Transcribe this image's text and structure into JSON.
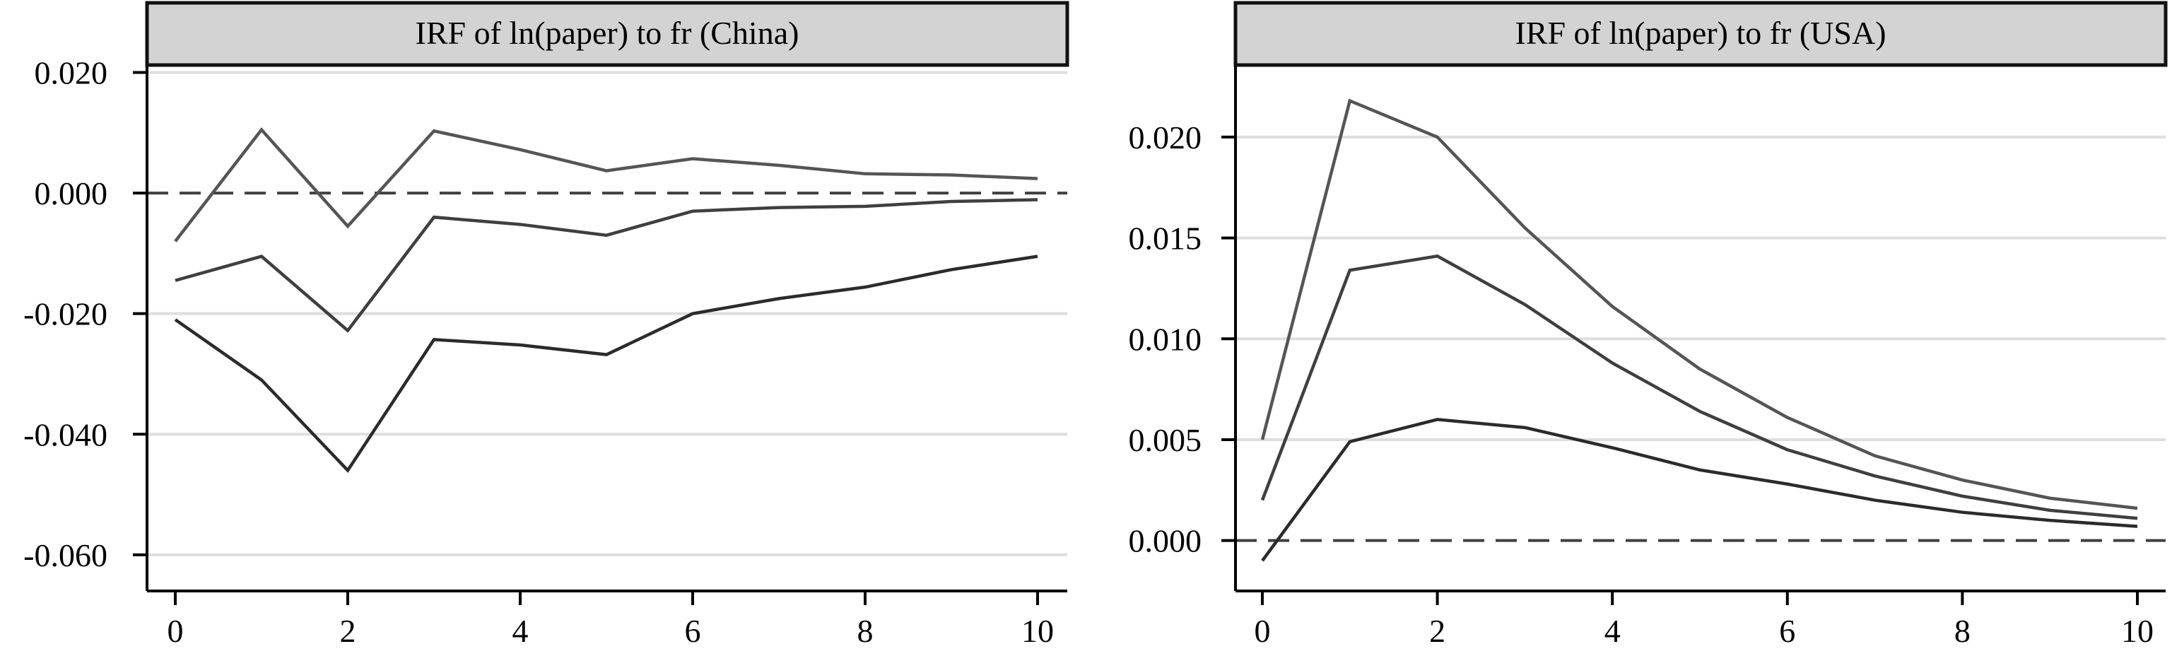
{
  "chart_data": [
    {
      "type": "line",
      "title": "IRF of ln(paper) to fr (China)",
      "xlabel": "",
      "ylabel": "",
      "xlim": [
        0,
        10
      ],
      "ylim": [
        -0.066,
        0.021
      ],
      "xticks": [
        "0",
        "2",
        "4",
        "6",
        "8",
        "10"
      ],
      "yticks": [
        "0.020",
        "0.000",
        "-0.020",
        "-0.040",
        "-0.060"
      ],
      "reference_line": 0,
      "grid": true,
      "colors": [
        "#555555",
        "#3f3f3f",
        "#2b2b2b"
      ],
      "x": [
        0,
        1,
        2,
        3,
        4,
        5,
        6,
        7,
        8,
        9,
        10
      ],
      "series": [
        {
          "values": [
            -0.008,
            0.0105,
            -0.0055,
            0.0103,
            0.0072,
            0.0037,
            0.0057,
            0.0046,
            0.0032,
            0.003,
            0.0024
          ]
        },
        {
          "values": [
            -0.0145,
            -0.0105,
            -0.0228,
            -0.004,
            -0.0052,
            -0.007,
            -0.003,
            -0.0024,
            -0.0022,
            -0.0014,
            -0.0011
          ]
        },
        {
          "values": [
            -0.021,
            -0.031,
            -0.046,
            -0.0243,
            -0.0252,
            -0.0268,
            -0.02,
            -0.0175,
            -0.0156,
            -0.0127,
            -0.0105
          ]
        }
      ]
    },
    {
      "type": "line",
      "title": "IRF of ln(paper)  to fr (USA)",
      "xlabel": "",
      "ylabel": "",
      "xlim": [
        0,
        10
      ],
      "ylim": [
        -0.0025,
        0.0235
      ],
      "xticks": [
        "0",
        "2",
        "4",
        "6",
        "8",
        "10"
      ],
      "yticks": [
        "0.020",
        "0.015",
        "0.010",
        "0.005",
        "0.000"
      ],
      "reference_line": 0,
      "grid": true,
      "colors": [
        "#555555",
        "#3f3f3f",
        "#2b2b2b"
      ],
      "x": [
        0,
        1,
        2,
        3,
        4,
        5,
        6,
        7,
        8,
        9,
        10
      ],
      "series": [
        {
          "values": [
            0.005,
            0.0218,
            0.02,
            0.0155,
            0.0116,
            0.0085,
            0.0061,
            0.0042,
            0.003,
            0.0021,
            0.0016
          ]
        },
        {
          "values": [
            0.002,
            0.0134,
            0.0141,
            0.0117,
            0.0088,
            0.0064,
            0.0045,
            0.0032,
            0.0022,
            0.0015,
            0.0011
          ]
        },
        {
          "values": [
            -0.001,
            0.0049,
            0.006,
            0.0056,
            0.0046,
            0.0035,
            0.0028,
            0.002,
            0.0014,
            0.001,
            0.0007
          ]
        }
      ]
    }
  ]
}
